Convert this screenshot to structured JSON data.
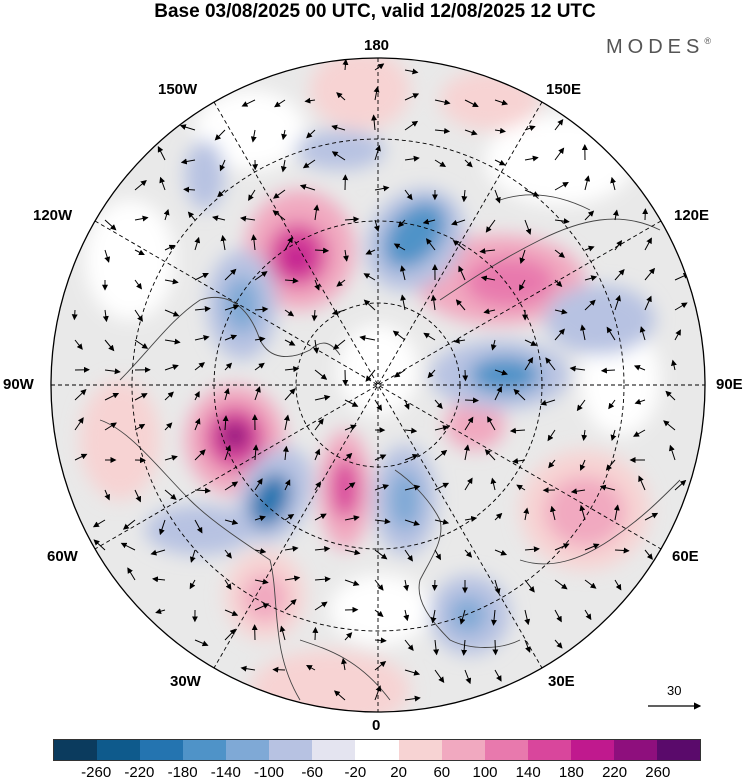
{
  "title": "Base 03/08/2025 00 UTC, valid 12/08/2025 12 UTC",
  "brand": {
    "name": "MODES",
    "mark": "®"
  },
  "longitude_labels": {
    "n180": "180",
    "w150": "150W",
    "e150": "150E",
    "w120": "120W",
    "e120": "120E",
    "w90": "90W",
    "e90": "90E",
    "w60": "60W",
    "e60": "60E",
    "w30": "30W",
    "e30": "30E",
    "zero": "0"
  },
  "reference_vector": {
    "label": "30"
  },
  "colorbar": {
    "colors": [
      "#0b3b5e",
      "#0e5a8c",
      "#2474b0",
      "#4f93c8",
      "#7fa9d6",
      "#b7c2e2",
      "#e4e4f0",
      "#ffffff",
      "#f7d3d3",
      "#f1a9c0",
      "#e879ad",
      "#d9469c",
      "#c0198e",
      "#8e0f7d",
      "#5a0a6b"
    ],
    "tick_labels": [
      "-260",
      "-220",
      "-180",
      "-140",
      "-100",
      "-60",
      "-20",
      "20",
      "60",
      "100",
      "140",
      "180",
      "220",
      "260"
    ]
  },
  "colors": {
    "background": "#ffffff",
    "field_gray": "#e9e9e9",
    "circle": "#000000"
  }
}
